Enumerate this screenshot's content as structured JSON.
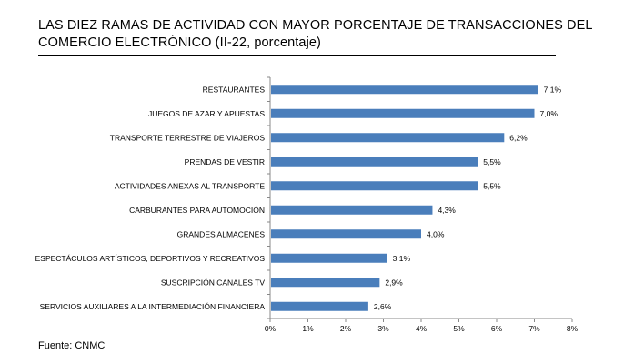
{
  "header": {
    "title_line1": "LAS DIEZ RAMAS DE ACTIVIDAD CON MAYOR PORCENTAJE DE TRANSACCIONES DEL",
    "title_line2": "COMERCIO ELECTRÓNICO (II-22, porcentaje)"
  },
  "footer": {
    "source": "Fuente: CNMC"
  },
  "chart_data": {
    "type": "bar",
    "orientation": "horizontal",
    "categories": [
      "RESTAURANTES",
      "JUEGOS DE AZAR Y APUESTAS",
      "TRANSPORTE TERRESTRE DE VIAJEROS",
      "PRENDAS DE VESTIR",
      "ACTIVIDADES ANEXAS AL TRANSPORTE",
      "CARBURANTES PARA AUTOMOCIÓN",
      "GRANDES ALMACENES",
      "ESPECTÁCULOS ARTÍSTICOS, DEPORTIVOS Y RECREATIVOS",
      "SUSCRIPCIÓN CANALES TV",
      "SERVICIOS AUXILIARES A LA INTERMEDIACIÓN FINANCIERA"
    ],
    "values": [
      7.1,
      7.0,
      6.2,
      5.5,
      5.5,
      4.3,
      4.0,
      3.1,
      2.9,
      2.6
    ],
    "value_labels": [
      "7,1%",
      "7,0%",
      "6,2%",
      "5,5%",
      "5,5%",
      "4,3%",
      "4,0%",
      "3,1%",
      "2,9%",
      "2,6%"
    ],
    "xlim": [
      0,
      8
    ],
    "x_ticks": [
      0,
      1,
      2,
      3,
      4,
      5,
      6,
      7,
      8
    ],
    "x_tick_labels": [
      "0%",
      "1%",
      "2%",
      "3%",
      "4%",
      "5%",
      "6%",
      "7%",
      "8%"
    ],
    "bar_color": "#4a7ebb",
    "grid": false,
    "legend": "none"
  }
}
